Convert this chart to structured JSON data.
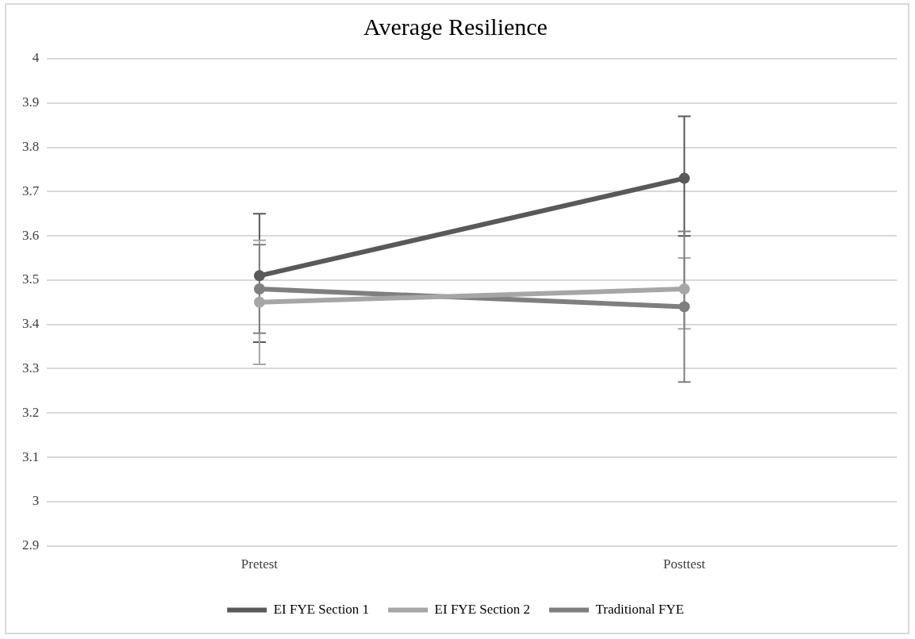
{
  "chart_data": {
    "type": "line",
    "title": "Average Resilience",
    "categories": [
      "Pretest",
      "Posttest"
    ],
    "series": [
      {
        "name": "EI FYE Section 1",
        "color": "#595959",
        "values": [
          3.51,
          3.73
        ],
        "errors": [
          [
            3.36,
            3.65
          ],
          [
            3.6,
            3.87
          ]
        ]
      },
      {
        "name": "EI FYE Section 2",
        "color": "#a6a6a6",
        "values": [
          3.45,
          3.48
        ],
        "errors": [
          [
            3.31,
            3.59
          ],
          [
            3.39,
            3.55
          ]
        ]
      },
      {
        "name": "Traditional FYE",
        "color": "#7f7f7f",
        "values": [
          3.48,
          3.44
        ],
        "errors": [
          [
            3.38,
            3.58
          ],
          [
            3.27,
            3.61
          ]
        ]
      }
    ],
    "ylim": [
      2.9,
      4
    ],
    "yticks": [
      2.9,
      3,
      3.1,
      3.2,
      3.3,
      3.4,
      3.5,
      3.6,
      3.7,
      3.8,
      3.9,
      4
    ],
    "grid": "y",
    "legend": "bottom",
    "marker": "circle",
    "line_style": "solid"
  }
}
